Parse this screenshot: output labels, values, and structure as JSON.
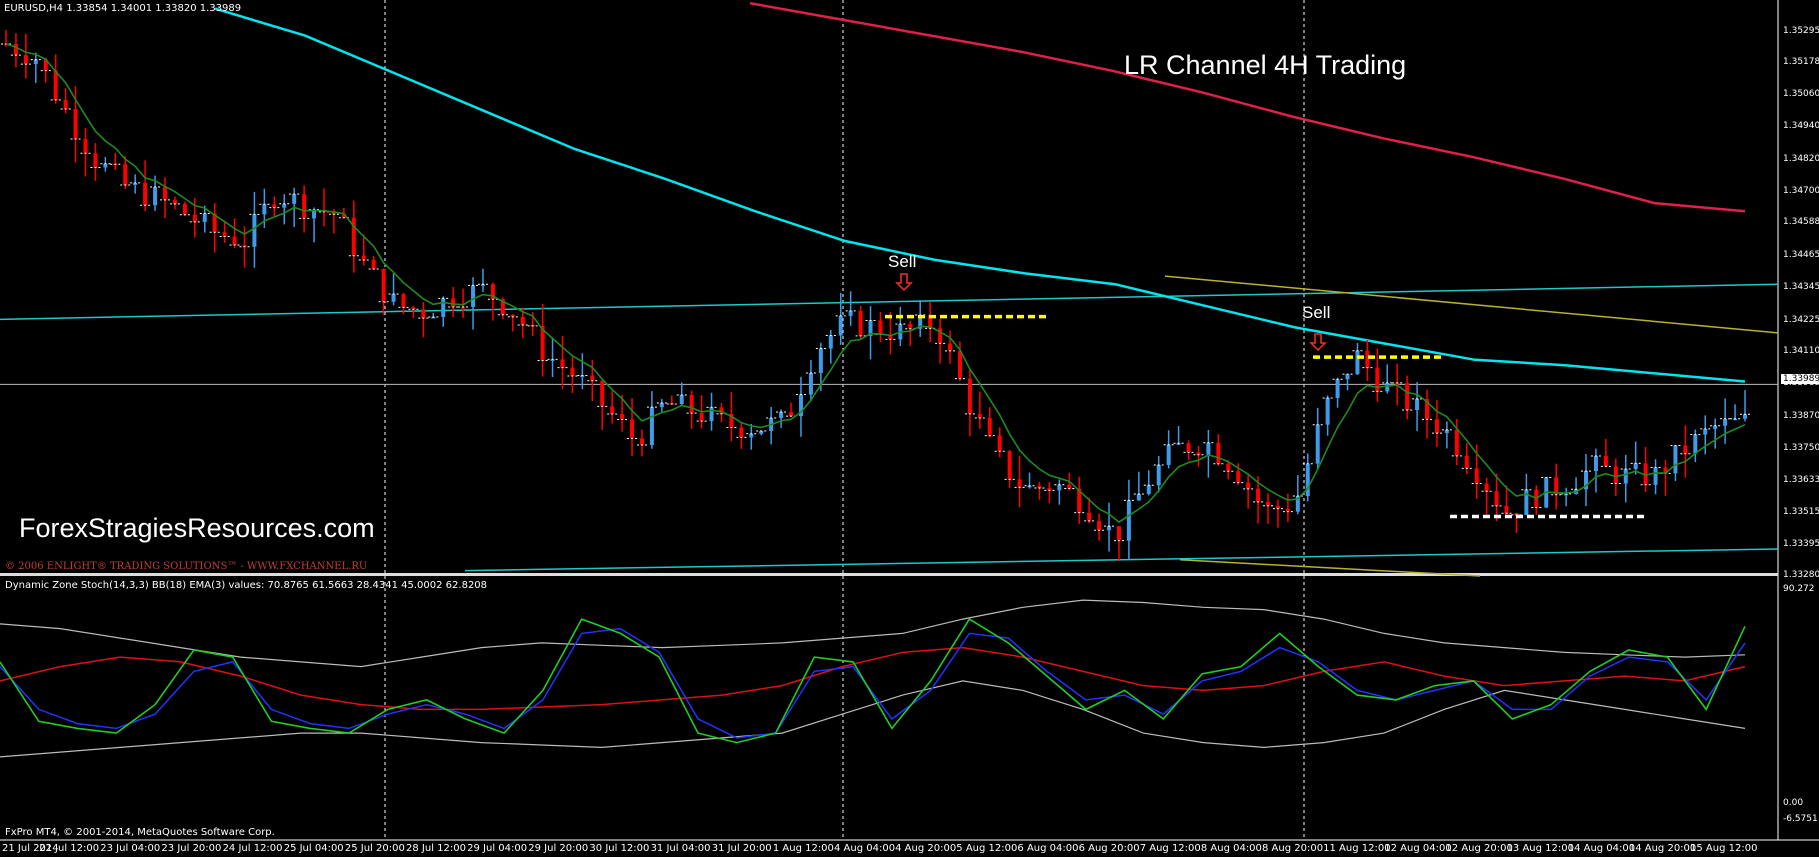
{
  "window": {
    "symbol_header": "EURUSD,H4  1.33854 1.34001 1.33820 1.33989",
    "chart_title": "LR  Channel 4H Trading",
    "site_text": "ForexStragiesResources.com",
    "copyright": "© 2006 ENLIGHT® TRADING SOLUTIONS™ - WWW.FXCHANNEL.RU",
    "sell_labels": [
      "Sell",
      "Sell"
    ],
    "indicator_header": "Dynamic Zone Stoch(14,3,3) BB(18) EMA(3) values:  70.8765 61.5663 28.4341 45.0002 62.8208",
    "footer_copyright": "FxPro MT4, © 2001-2014, MetaQuotes Software Corp.",
    "current_price": "1.33989"
  },
  "colors": {
    "background": "#000000",
    "bull_candle": "#3d9be9",
    "bear_candle": "#ff0000",
    "ema": "#1f8a1f",
    "ma_cyan": "#00e5ee",
    "ma_red": "#e0204a",
    "lr_channel": "#1ec8c8",
    "lr_yellow": "#b8b030",
    "sell_level": "#ffff00",
    "support_level": "#ffffff",
    "stoch_green": "#22cc22",
    "stoch_blue": "#2233ff",
    "stoch_red": "#dd1111",
    "band_gray": "#bbbbbb"
  },
  "price_scale": [
    "1.35295",
    "1.35178",
    "1.35060",
    "1.34940",
    "1.34820",
    "1.34700",
    "1.34588",
    "1.34465",
    "1.34345",
    "1.34225",
    "1.34110",
    "1.33989",
    "1.33870",
    "1.33750",
    "1.33633",
    "1.33515",
    "1.33395",
    "1.33280"
  ],
  "indicator_scale": [
    "90.272",
    "0.00",
    "-6.5751"
  ],
  "time_axis": [
    "21 Jul 2014",
    "22 Jul 12:00",
    "23 Jul 04:00",
    "23 Jul 20:00",
    "24 Jul 12:00",
    "25 Jul 04:00",
    "25 Jul 20:00",
    "28 Jul 12:00",
    "29 Jul 04:00",
    "29 Jul 20:00",
    "30 Jul 12:00",
    "31 Jul 04:00",
    "31 Jul 20:00",
    "1 Aug 12:00",
    "4 Aug 04:00",
    "4 Aug 20:00",
    "5 Aug 12:00",
    "6 Aug 04:00",
    "6 Aug 20:00",
    "7 Aug 12:00",
    "8 Aug 04:00",
    "8 Aug 20:00",
    "11 Aug 12:00",
    "12 Aug 04:00",
    "12 Aug 20:00",
    "13 Aug 12:00",
    "14 Aug 04:00",
    "14 Aug 20:00",
    "15 Aug 12:00"
  ],
  "chart_data": {
    "type": "candlestick",
    "symbol": "EURUSD",
    "timeframe": "H4",
    "ohlc_header": {
      "open": 1.33854,
      "high": 1.34001,
      "low": 1.3382,
      "close": 1.33989
    },
    "ylim": [
      1.3328,
      1.3536
    ],
    "close_path": [
      1.3525,
      1.352,
      1.35,
      1.3482,
      1.3472,
      1.3468,
      1.3462,
      1.3455,
      1.3452,
      1.347,
      1.3465,
      1.3462,
      1.3442,
      1.3428,
      1.3426,
      1.3432,
      1.3434,
      1.3425,
      1.341,
      1.3402,
      1.339,
      1.3378,
      1.3392,
      1.3389,
      1.3384,
      1.3383,
      1.3385,
      1.3412,
      1.3422,
      1.342,
      1.3418,
      1.3422,
      1.3395,
      1.3372,
      1.336,
      1.3362,
      1.3355,
      1.3342,
      1.3362,
      1.3375,
      1.3378,
      1.3368,
      1.3352,
      1.3355,
      1.339,
      1.341,
      1.3398,
      1.339,
      1.3382,
      1.3368,
      1.3352,
      1.3358,
      1.3362,
      1.3368,
      1.3365,
      1.3365,
      1.3375,
      1.3383,
      1.3385
    ],
    "moving_averages": [
      {
        "color": "cyan",
        "path": [
          1.3538,
          1.3528,
          1.3514,
          1.35,
          1.3486,
          1.3475,
          1.3463,
          1.3452,
          1.3445,
          1.344,
          1.3436,
          1.3428,
          1.342,
          1.3414,
          1.3408,
          1.3406,
          1.3403,
          1.34
        ]
      },
      {
        "color": "red",
        "path": [
          1.354,
          1.3534,
          1.3528,
          1.3522,
          1.3515,
          1.3507,
          1.3498,
          1.349,
          1.3483,
          1.3475,
          1.3466,
          1.3463
        ]
      }
    ],
    "lr_channel": {
      "upper": [
        1.3423,
        1.3436
      ],
      "lower": [
        1.333,
        1.3338
      ]
    },
    "sell_levels": [
      {
        "label": "Sell",
        "price": 1.3424
      },
      {
        "label": "Sell",
        "price": 1.3409
      }
    ],
    "support_level": 1.335,
    "indicator": {
      "name": "Dynamic Zone Stoch(14,3,3) BB(18) EMA(3)",
      "values": [
        70.8765,
        61.5663,
        28.4341,
        45.0002,
        62.8208
      ],
      "ylim": [
        -6.5751,
        90.272
      ]
    }
  }
}
